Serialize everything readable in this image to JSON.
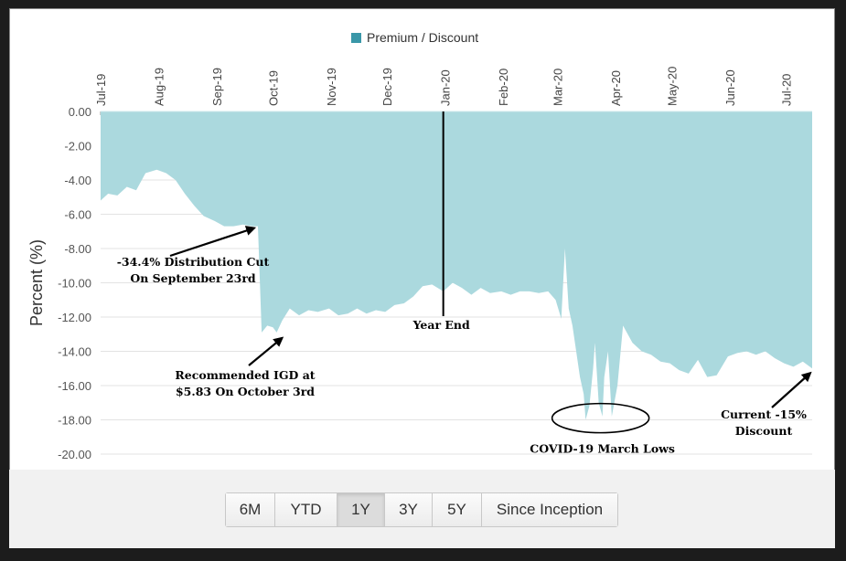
{
  "chart_data": {
    "type": "area",
    "legend": {
      "label": "Premium / Discount",
      "color": "#3a97a8",
      "position": "top-center"
    },
    "ylabel": "Percent (%)",
    "ylim": [
      -20,
      0
    ],
    "yticks": [
      "0.00",
      "-2.00",
      "-4.00",
      "-6.00",
      "-8.00",
      "-10.00",
      "-12.00",
      "-14.00",
      "-16.00",
      "-18.00",
      "-20.00"
    ],
    "xticks": [
      "Jul-19",
      "Aug-19",
      "Sep-19",
      "Oct-19",
      "Nov-19",
      "Dec-19",
      "Jan-20",
      "Feb-20",
      "Mar-20",
      "Apr-20",
      "May-20",
      "Jun-20",
      "Jul-20"
    ],
    "fill_color": "#abd9de",
    "grid": true,
    "series": [
      {
        "x": [
          "2019-07-01",
          "2019-07-05",
          "2019-07-10",
          "2019-07-15",
          "2019-07-20",
          "2019-07-25",
          "2019-07-31",
          "2019-08-05",
          "2019-08-10",
          "2019-08-15",
          "2019-08-20",
          "2019-08-25",
          "2019-08-31",
          "2019-09-05",
          "2019-09-10",
          "2019-09-15",
          "2019-09-20",
          "2019-09-23",
          "2019-09-25",
          "2019-09-28",
          "2019-10-01",
          "2019-10-03",
          "2019-10-06",
          "2019-10-10",
          "2019-10-15",
          "2019-10-20",
          "2019-10-25",
          "2019-10-31",
          "2019-11-05",
          "2019-11-10",
          "2019-11-15",
          "2019-11-20",
          "2019-11-25",
          "2019-11-30",
          "2019-12-05",
          "2019-12-10",
          "2019-12-15",
          "2019-12-20",
          "2019-12-25",
          "2019-12-31",
          "2020-01-05",
          "2020-01-10",
          "2020-01-15",
          "2020-01-20",
          "2020-01-25",
          "2020-01-31",
          "2020-02-05",
          "2020-02-10",
          "2020-02-15",
          "2020-02-20",
          "2020-02-25",
          "2020-02-29",
          "2020-03-03",
          "2020-03-05",
          "2020-03-07",
          "2020-03-09",
          "2020-03-11",
          "2020-03-13",
          "2020-03-15",
          "2020-03-16",
          "2020-03-18",
          "2020-03-20",
          "2020-03-21",
          "2020-03-23",
          "2020-03-25",
          "2020-03-26",
          "2020-03-28",
          "2020-03-30",
          "2020-04-02",
          "2020-04-05",
          "2020-04-10",
          "2020-04-15",
          "2020-04-20",
          "2020-04-25",
          "2020-04-30",
          "2020-05-05",
          "2020-05-10",
          "2020-05-15",
          "2020-05-20",
          "2020-05-25",
          "2020-05-31",
          "2020-06-05",
          "2020-06-10",
          "2020-06-15",
          "2020-06-20",
          "2020-06-25",
          "2020-06-30",
          "2020-07-05",
          "2020-07-10",
          "2020-07-15"
        ],
        "values": [
          -5.2,
          -4.8,
          -4.9,
          -4.4,
          -4.6,
          -3.6,
          -3.4,
          -3.6,
          -4.0,
          -4.8,
          -5.5,
          -6.1,
          -6.4,
          -6.7,
          -6.7,
          -6.6,
          -6.7,
          -6.7,
          -12.9,
          -12.5,
          -12.6,
          -12.9,
          -12.2,
          -11.5,
          -11.9,
          -11.6,
          -11.7,
          -11.5,
          -11.9,
          -11.8,
          -11.5,
          -11.8,
          -11.6,
          -11.7,
          -11.3,
          -11.2,
          -10.8,
          -10.2,
          -10.1,
          -10.5,
          -10.0,
          -10.3,
          -10.7,
          -10.3,
          -10.6,
          -10.5,
          -10.7,
          -10.5,
          -10.5,
          -10.6,
          -10.5,
          -11.0,
          -12.1,
          -8.0,
          -11.5,
          -12.5,
          -14.0,
          -15.5,
          -16.5,
          -18.0,
          -17.2,
          -15.0,
          -13.5,
          -17.0,
          -17.8,
          -15.5,
          -14.0,
          -17.8,
          -16.0,
          -12.5,
          -13.5,
          -14.0,
          -14.2,
          -14.6,
          -14.7,
          -15.1,
          -15.3,
          -14.5,
          -15.5,
          -15.4,
          -14.3,
          -14.1,
          -14.0,
          -14.2,
          -14.0,
          -14.4,
          -14.7,
          -14.9,
          -14.6,
          -15.0
        ]
      }
    ],
    "annotations": [
      {
        "lines": [
          "-34.4% Distribution Cut",
          "On September 23rd"
        ],
        "date": "2019-09-23",
        "value": -6.7
      },
      {
        "lines": [
          "Recommended IGD at",
          "$5.83 On October 3rd"
        ],
        "date": "2019-10-03",
        "value": -12.9
      },
      {
        "lines": [
          "Year End"
        ],
        "date": "2019-12-31",
        "value": -12.5
      },
      {
        "lines": [
          "COVID-19 March Lows"
        ],
        "date": "2020-03-24",
        "value": -17.9
      },
      {
        "lines": [
          "Current -15%",
          "Discount"
        ],
        "date": "2020-07-15",
        "value": -15.0
      }
    ]
  },
  "range_buttons": [
    {
      "label": "6M"
    },
    {
      "label": "YTD"
    },
    {
      "label": "1Y",
      "active": true
    },
    {
      "label": "3Y"
    },
    {
      "label": "5Y"
    },
    {
      "label": "Since Inception"
    }
  ]
}
